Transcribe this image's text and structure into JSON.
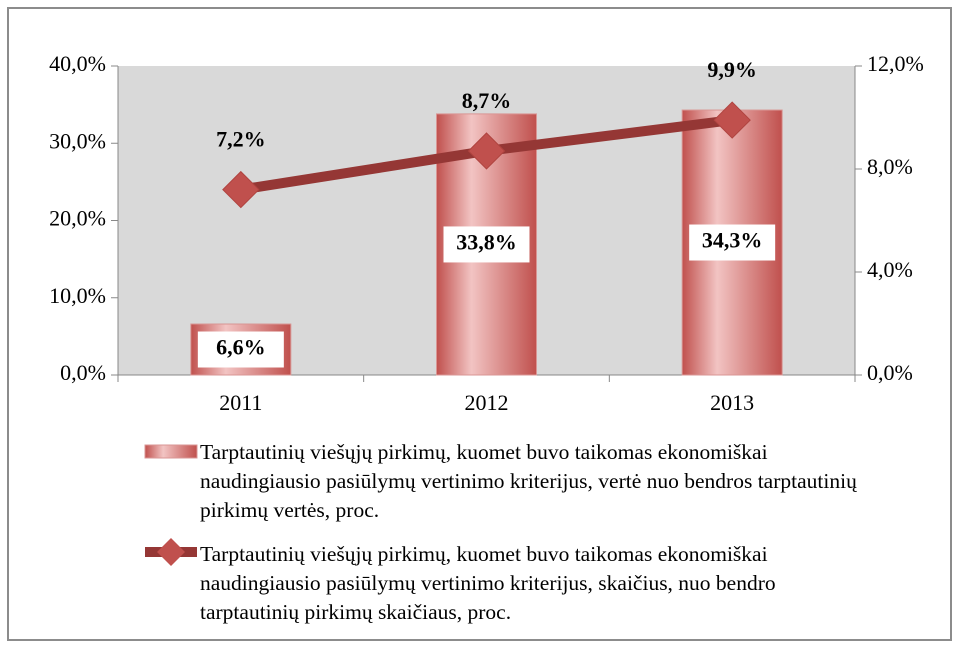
{
  "chart_data": {
    "type": "bar",
    "categories": [
      "2011",
      "2012",
      "2013"
    ],
    "series": [
      {
        "name": "Tarptautinių viešųjų pirkimų, kuomet buvo taikomas ekonomiškai naudingiausio pasiūlymų vertinimo kriterijus, vertė nuo bendros tarptautinių pirkimų vertės, proc.",
        "type": "bar",
        "color": "#d99694",
        "values": [
          6.6,
          33.8,
          34.3
        ],
        "value_labels": [
          "6,6%",
          "33,8%",
          "34,3%"
        ]
      },
      {
        "name": "Tarptautinių viešųjų pirkimų, kuomet buvo taikomas ekonomiškai naudingiausio pasiūlymų vertinimo kriterijus, skaičius, nuo bendro tarptautinių pirkimų skaičiaus, proc.",
        "type": "line",
        "axis": "y2",
        "color": "#953735",
        "marker_color": "#c0504d",
        "values": [
          7.2,
          8.7,
          9.9
        ],
        "value_labels": [
          "7,2%",
          "8,7%",
          "9,9%"
        ]
      }
    ],
    "ylim": [
      0,
      40
    ],
    "yticks": [
      {
        "value": 0,
        "label": "0,0%"
      },
      {
        "value": 10,
        "label": "10,0%"
      },
      {
        "value": 20,
        "label": "20,0%"
      },
      {
        "value": 30,
        "label": "30,0%"
      },
      {
        "value": 40,
        "label": "40,0%"
      }
    ],
    "y2lim": [
      0,
      12
    ],
    "y2ticks": [
      {
        "value": 0,
        "label": "0,0%"
      },
      {
        "value": 4,
        "label": "4,0%"
      },
      {
        "value": 8,
        "label": "8,0%"
      },
      {
        "value": 12,
        "label": "12,0%"
      }
    ],
    "legend": "bottom"
  }
}
